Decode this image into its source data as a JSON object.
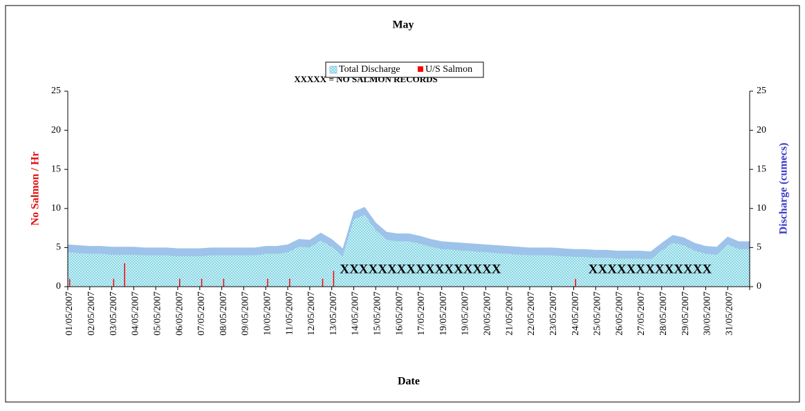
{
  "chart_data": {
    "type": "area-bar",
    "title": "May",
    "subtitle": "XXXXX = NO SALMON RECORDS",
    "x_label": "Date",
    "y_label": "No Salmon / Hr",
    "y2_label": "Discharge (cumecs)",
    "categories": [
      "01/05/2007",
      null,
      "02/05/2007",
      null,
      "03/05/2007",
      null,
      "04/05/2007",
      null,
      "05/05/2007",
      null,
      "06/05/2007",
      null,
      "07/05/2007",
      null,
      "08/05/2007",
      null,
      "09/05/2007",
      null,
      "10/05/2007",
      null,
      "11/05/2007",
      null,
      "12/05/2007",
      null,
      "13/05/2007",
      null,
      "14/05/2007",
      null,
      "15/05/2007",
      null,
      "16/05/2007",
      null,
      "17/05/2007",
      null,
      "19/05/2007",
      null,
      "19/05/2007",
      null,
      "20/05/2007",
      null,
      "21/05/2007",
      null,
      "22/05/2007",
      null,
      "23/05/2007",
      null,
      "24/05/2007",
      null,
      "25/05/2007",
      null,
      "26/05/2007",
      null,
      "27/05/2007",
      null,
      "28/05/2007",
      null,
      "29/05/2007",
      null,
      "30/05/2007",
      null,
      "31/05/2007",
      null,
      null
    ],
    "series": [
      {
        "name": "Total Discharge",
        "color": "#9dc3ea",
        "axis": "y2",
        "values": [
          5.4,
          5.3,
          5.2,
          5.2,
          5.1,
          5.1,
          5.1,
          5.0,
          5.0,
          5.0,
          4.9,
          4.9,
          4.9,
          5.0,
          5.0,
          5.0,
          5.0,
          5.0,
          5.2,
          5.2,
          5.4,
          6.1,
          6.0,
          6.9,
          6.1,
          4.9,
          9.6,
          10.2,
          8.2,
          7.0,
          6.8,
          6.8,
          6.5,
          6.1,
          5.8,
          5.7,
          5.6,
          5.5,
          5.4,
          5.3,
          5.2,
          5.1,
          5.0,
          5.0,
          5.0,
          4.9,
          4.8,
          4.8,
          4.7,
          4.7,
          4.6,
          4.6,
          4.6,
          4.5,
          5.6,
          6.6,
          6.3,
          5.6,
          5.2,
          5.1,
          6.4,
          5.8,
          5.8
        ]
      },
      {
        "name": "U/S Salmon",
        "color": "#ff0000",
        "values": [
          1,
          null,
          null,
          null,
          1,
          3,
          null,
          null,
          null,
          null,
          1,
          null,
          1,
          null,
          1,
          null,
          null,
          null,
          1,
          null,
          1,
          null,
          null,
          1,
          2,
          null,
          null,
          null,
          null,
          null,
          null,
          null,
          null,
          null,
          null,
          null,
          null,
          null,
          null,
          null,
          null,
          null,
          null,
          null,
          null,
          null,
          1,
          null,
          null,
          null,
          null,
          null,
          null,
          null,
          null,
          null,
          null,
          null,
          null,
          null,
          null,
          null,
          null
        ]
      }
    ],
    "annotations": [
      "XXXXXXXXXXXXXXXXX",
      "XXXXXXXXXXXXX"
    ],
    "ylim": [
      0,
      25
    ],
    "yticks": [
      0,
      5,
      10,
      15,
      20,
      25
    ],
    "y2lim": [
      0,
      25
    ],
    "y2ticks": [
      0,
      5,
      10,
      15,
      20,
      25
    ],
    "grid": false,
    "legend": "top"
  }
}
